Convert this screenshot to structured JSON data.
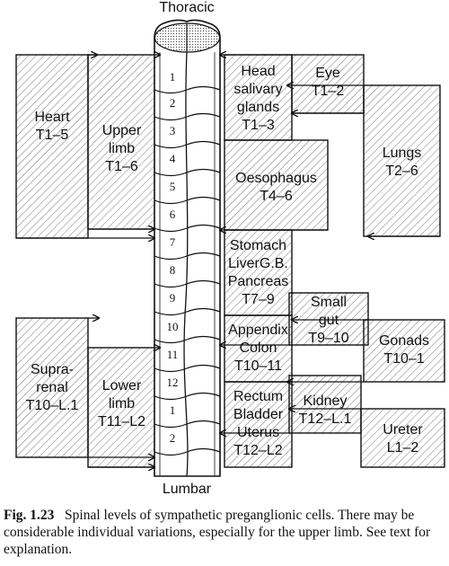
{
  "diagram": {
    "top_label": "Thoracic",
    "bottom_label": "Lumbar",
    "segments": [
      "1",
      "2",
      "3",
      "4",
      "5",
      "6",
      "7",
      "8",
      "9",
      "10",
      "11",
      "12",
      "1",
      "2"
    ],
    "organs": {
      "heart": {
        "name": "Heart",
        "levels": "T1–5"
      },
      "upper_limb": {
        "name_line1": "Upper",
        "name_line2": "limb",
        "levels": "T1–6"
      },
      "head": {
        "line1": "Head",
        "line2": "salivary",
        "line3": "glands",
        "levels": "T1–3"
      },
      "eye": {
        "name": "Eye",
        "levels": "T1–2"
      },
      "lungs": {
        "name": "Lungs",
        "levels": "T2–6"
      },
      "oesophagus": {
        "name": "Oesophagus",
        "levels": "T4–6"
      },
      "stomach": {
        "line1": "Stomach",
        "line2": "LiverG.B.",
        "line3": "Pancreas",
        "levels": "T7–9"
      },
      "small_gut": {
        "line1": "Small",
        "line2": "gut",
        "levels": "T9–10"
      },
      "appendix": {
        "line1": "Appendix",
        "line2": "Colon",
        "levels": "T10–11"
      },
      "gonads": {
        "name": "Gonads",
        "levels": "T10–1"
      },
      "suprarenal": {
        "line1": "Supra-",
        "line2": "renal",
        "levels": "T10–L.1"
      },
      "lower_limb": {
        "line1": "Lower",
        "line2": "limb",
        "levels": "T11–L2"
      },
      "rectum": {
        "line1": "Rectum",
        "line2": "Bladder",
        "line3": "Uterus",
        "levels": "T12–L2"
      },
      "kidney": {
        "name": "Kidney",
        "levels": "T12–L.1"
      },
      "ureter": {
        "name": "Ureter",
        "levels": "L1–2"
      }
    }
  },
  "caption": {
    "fig_label": "Fig. 1.23",
    "text": "Spinal levels of sympathetic preganglionic cells. There may be considerable individual variations, especially for the upper limb. See text for explanation."
  }
}
